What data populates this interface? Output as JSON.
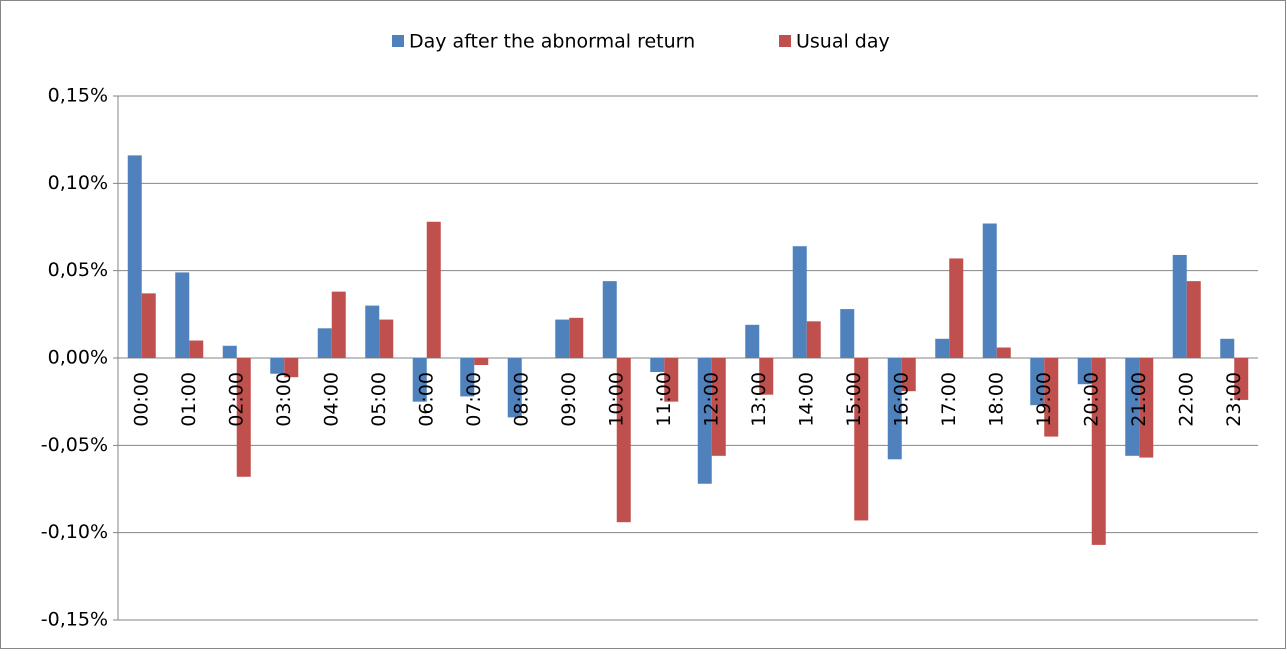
{
  "chart_data": {
    "type": "bar",
    "categories": [
      "00:00",
      "01:00",
      "02:00",
      "03:00",
      "04:00",
      "05:00",
      "06:00",
      "07:00",
      "08:00",
      "09:00",
      "10:00",
      "11:00",
      "12:00",
      "13:00",
      "14:00",
      "15:00",
      "16:00",
      "17:00",
      "18:00",
      "19:00",
      "20:00",
      "21:00",
      "22:00",
      "23:00"
    ],
    "series": [
      {
        "name": "Day after the abnormal return",
        "color": "#4f81bd",
        "values": [
          0.116,
          0.049,
          0.007,
          -0.009,
          0.017,
          0.03,
          -0.025,
          -0.022,
          -0.034,
          0.022,
          0.044,
          -0.008,
          -0.072,
          0.019,
          0.064,
          0.028,
          -0.058,
          0.011,
          0.077,
          -0.027,
          -0.015,
          -0.056,
          0.059,
          0.011
        ]
      },
      {
        "name": "Usual day",
        "color": "#c0504d",
        "values": [
          0.037,
          0.01,
          -0.068,
          -0.011,
          0.038,
          0.022,
          0.078,
          -0.004,
          0,
          0.023,
          -0.094,
          -0.025,
          -0.056,
          -0.021,
          0.021,
          -0.093,
          -0.019,
          0.057,
          0.006,
          -0.045,
          -0.107,
          -0.057,
          0.044,
          -0.024
        ]
      }
    ],
    "ylim": [
      -0.15,
      0.15
    ],
    "yticks": [
      {
        "value": -0.15,
        "label": "-0,15%"
      },
      {
        "value": -0.1,
        "label": "-0,10%"
      },
      {
        "value": -0.05,
        "label": "-0,05%"
      },
      {
        "value": 0,
        "label": "0,00%"
      },
      {
        "value": 0.05,
        "label": "0,05%"
      },
      {
        "value": 0.1,
        "label": "0,10%"
      },
      {
        "value": 0.15,
        "label": "0,15%"
      }
    ],
    "grid": true,
    "legend": "top"
  }
}
